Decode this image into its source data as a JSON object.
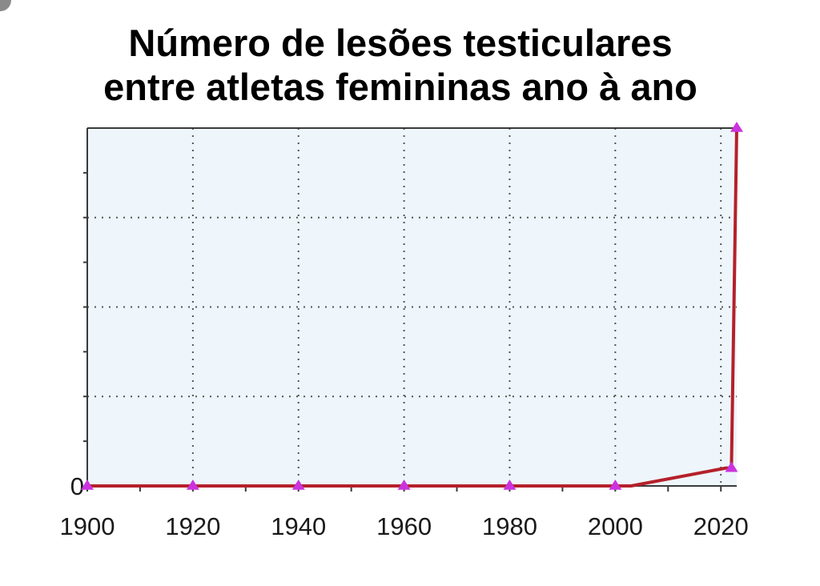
{
  "chart_data": {
    "type": "line",
    "title_lines": [
      "Número de lesões testiculares",
      "entre atletas femininas ano à ano"
    ],
    "x": [
      1900,
      1920,
      1940,
      1960,
      1980,
      2000,
      2003,
      2021,
      2022,
      2023
    ],
    "y": [
      0,
      0,
      0,
      0,
      0,
      0,
      0,
      0.2,
      0.2,
      4
    ],
    "markers": [
      {
        "x": 1900,
        "y": 0
      },
      {
        "x": 1920,
        "y": 0
      },
      {
        "x": 1940,
        "y": 0
      },
      {
        "x": 1960,
        "y": 0
      },
      {
        "x": 1980,
        "y": 0
      },
      {
        "x": 2000,
        "y": 0
      },
      {
        "x": 2022,
        "y": 0.2
      },
      {
        "x": 2023,
        "y": 4
      }
    ],
    "xlim": [
      1900,
      2023
    ],
    "ylim": [
      0,
      4
    ],
    "x_ticks": [
      1900,
      1920,
      1940,
      1960,
      1980,
      2000,
      2020
    ],
    "x_minor_ticks": [
      1910,
      1930,
      1950,
      1970,
      1990,
      2010
    ],
    "x_grid": [
      1920,
      1940,
      1960,
      1980,
      2000,
      2020
    ],
    "y_ticks": [
      0
    ],
    "y_tick_labels": [
      "0"
    ],
    "y_minor_ticks": [
      0.5,
      1,
      1.5,
      2,
      2.5,
      3,
      3.5
    ],
    "y_grid": [
      1,
      2,
      3
    ],
    "grid": true,
    "colors": {
      "plot_bg": "#eef6fb",
      "line": "#b5202a",
      "marker": "#cc33dd",
      "grid": "#555555",
      "frame": "#3a3a3a"
    }
  }
}
